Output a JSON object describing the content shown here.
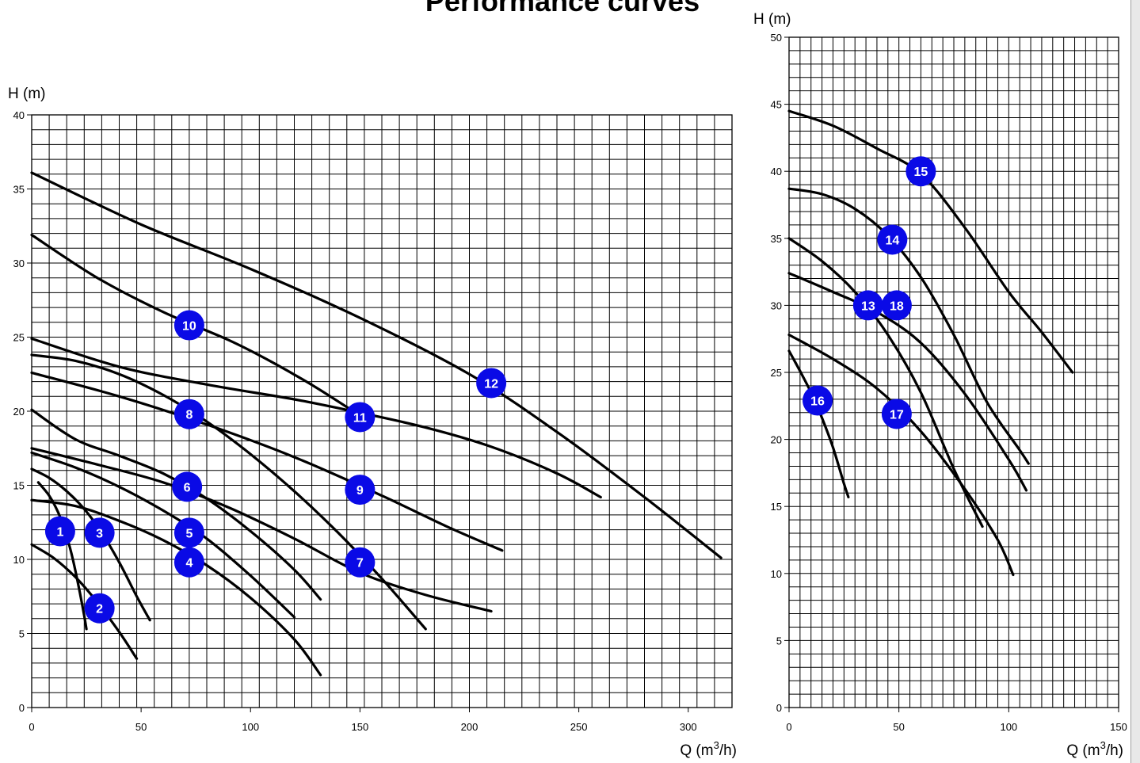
{
  "title": "Performance curves",
  "chart_data": [
    {
      "type": "line",
      "ylabel_prefix": "H (m)",
      "xlabel_prefix": "Q (m",
      "xlabel_sup": "3",
      "xlabel_suffix": "/h)",
      "xlim": [
        0,
        320
      ],
      "ylim": [
        0,
        40
      ],
      "xticks": [
        0,
        50,
        100,
        150,
        200,
        250,
        300
      ],
      "yticks": [
        0,
        5,
        10,
        15,
        20,
        25,
        30,
        35,
        40
      ],
      "grid": true,
      "series": [
        {
          "label": "1",
          "points": [
            [
              3,
              15.2
            ],
            [
              8,
              14.3
            ],
            [
              12,
              13.2
            ],
            [
              15,
              12.0
            ],
            [
              18,
              10.5
            ],
            [
              21,
              8.5
            ],
            [
              24,
              6.2
            ],
            [
              25,
              5.3
            ]
          ],
          "badge": [
            13,
            11.9
          ]
        },
        {
          "label": "2",
          "points": [
            [
              0,
              11
            ],
            [
              10,
              10.1
            ],
            [
              20,
              8.8
            ],
            [
              30,
              7.1
            ],
            [
              40,
              5.1
            ],
            [
              48,
              3.3
            ]
          ],
          "badge": [
            31,
            6.7
          ]
        },
        {
          "label": "3",
          "points": [
            [
              0,
              16.1
            ],
            [
              8,
              15.5
            ],
            [
              16,
              14.6
            ],
            [
              24,
              13.4
            ],
            [
              32,
              11.8
            ],
            [
              40,
              9.8
            ],
            [
              48,
              7.5
            ],
            [
              54,
              5.9
            ]
          ],
          "badge": [
            31,
            11.8
          ]
        },
        {
          "label": "4",
          "points": [
            [
              0,
              14
            ],
            [
              20,
              13.6
            ],
            [
              40,
              12.6
            ],
            [
              60,
              11.3
            ],
            [
              80,
              9.6
            ],
            [
              100,
              7.4
            ],
            [
              120,
              4.6
            ],
            [
              132,
              2.2
            ]
          ],
          "badge": [
            72,
            9.8
          ]
        },
        {
          "label": "5",
          "points": [
            [
              0,
              17.2
            ],
            [
              20,
              16.2
            ],
            [
              40,
              14.9
            ],
            [
              60,
              13.3
            ],
            [
              80,
              11.4
            ],
            [
              100,
              8.9
            ],
            [
              120,
              6.1
            ]
          ],
          "badge": [
            72,
            11.8
          ]
        },
        {
          "label": "6",
          "points": [
            [
              0,
              20.1
            ],
            [
              20,
              18.1
            ],
            [
              40,
              17.0
            ],
            [
              60,
              15.8
            ],
            [
              80,
              14.1
            ],
            [
              100,
              11.9
            ],
            [
              120,
              9.3
            ],
            [
              132,
              7.3
            ]
          ],
          "badge": [
            71,
            14.9
          ]
        },
        {
          "label": "7",
          "points": [
            [
              0,
              17.5
            ],
            [
              30,
              16.4
            ],
            [
              60,
              15.2
            ],
            [
              90,
              13.5
            ],
            [
              120,
              11.4
            ],
            [
              150,
              9.1
            ],
            [
              180,
              7.6
            ],
            [
              210,
              6.5
            ]
          ],
          "badge": [
            150,
            9.8
          ]
        },
        {
          "label": "8",
          "points": [
            [
              0,
              23.8
            ],
            [
              20,
              23.4
            ],
            [
              40,
              22.5
            ],
            [
              60,
              21.1
            ],
            [
              80,
              19.3
            ],
            [
              100,
              17.1
            ],
            [
              120,
              14.6
            ],
            [
              140,
              11.8
            ],
            [
              160,
              8.7
            ],
            [
              180,
              5.3
            ]
          ],
          "badge": [
            72,
            19.8
          ]
        },
        {
          "label": "9",
          "points": [
            [
              0,
              22.6
            ],
            [
              40,
              21.0
            ],
            [
              80,
              19.1
            ],
            [
              120,
              16.9
            ],
            [
              160,
              14.3
            ],
            [
              190,
              12.2
            ],
            [
              215,
              10.6
            ]
          ],
          "badge": [
            150,
            14.7
          ]
        },
        {
          "label": "10",
          "points": [
            [
              0,
              31.9
            ],
            [
              30,
              29.0
            ],
            [
              60,
              26.7
            ],
            [
              90,
              24.8
            ],
            [
              110,
              23.3
            ],
            [
              130,
              21.6
            ],
            [
              150,
              19.7
            ]
          ],
          "badge": [
            72,
            25.8
          ]
        },
        {
          "label": "11",
          "points": [
            [
              0,
              24.9
            ],
            [
              40,
              23.0
            ],
            [
              80,
              21.8
            ],
            [
              120,
              20.8
            ],
            [
              150,
              19.9
            ],
            [
              180,
              18.9
            ],
            [
              210,
              17.6
            ],
            [
              240,
              15.8
            ],
            [
              260,
              14.2
            ]
          ],
          "badge": [
            150,
            19.6
          ]
        },
        {
          "label": "12",
          "points": [
            [
              0,
              36.1
            ],
            [
              50,
              32.6
            ],
            [
              100,
              29.6
            ],
            [
              150,
              26.3
            ],
            [
              200,
              22.5
            ],
            [
              240,
              18.6
            ],
            [
              280,
              14.2
            ],
            [
              315,
              10.1
            ]
          ],
          "badge": [
            210,
            21.9
          ]
        }
      ]
    },
    {
      "type": "line",
      "ylabel_prefix": "H (m)",
      "xlabel_prefix": "Q (m",
      "xlabel_sup": "3",
      "xlabel_suffix": "/h)",
      "xlim": [
        0,
        150
      ],
      "ylim": [
        0,
        50
      ],
      "xticks": [
        0,
        50,
        100,
        150
      ],
      "yticks": [
        0,
        5,
        10,
        15,
        20,
        25,
        30,
        35,
        40,
        45,
        50
      ],
      "grid": true,
      "series": [
        {
          "label": "13",
          "points": [
            [
              0,
              35
            ],
            [
              15,
              33.3
            ],
            [
              30,
              31.0
            ],
            [
              45,
              27.8
            ],
            [
              60,
              23.5
            ],
            [
              75,
              17.8
            ],
            [
              88,
              13.5
            ]
          ],
          "badge": [
            36,
            30
          ]
        },
        {
          "label": "14",
          "points": [
            [
              0,
              38.7
            ],
            [
              15,
              38.3
            ],
            [
              30,
              37.2
            ],
            [
              45,
              35.2
            ],
            [
              60,
              32.1
            ],
            [
              75,
              27.8
            ],
            [
              90,
              22.8
            ],
            [
              105,
              19.2
            ],
            [
              109,
              18.2
            ]
          ],
          "badge": [
            47,
            34.9
          ]
        },
        {
          "label": "15",
          "points": [
            [
              0,
              44.5
            ],
            [
              20,
              43.4
            ],
            [
              40,
              41.7
            ],
            [
              60,
              39.8
            ],
            [
              80,
              35.8
            ],
            [
              100,
              31.0
            ],
            [
              115,
              28.0
            ],
            [
              129,
              25
            ]
          ],
          "badge": [
            60,
            40
          ]
        },
        {
          "label": "16",
          "points": [
            [
              0,
              26.6
            ],
            [
              5,
              25.1
            ],
            [
              10,
              23.5
            ],
            [
              15,
              21.6
            ],
            [
              20,
              19.4
            ],
            [
              25,
              16.7
            ],
            [
              27,
              15.7
            ]
          ],
          "badge": [
            13,
            22.9
          ]
        },
        {
          "label": "17",
          "points": [
            [
              0,
              27.8
            ],
            [
              20,
              26.0
            ],
            [
              40,
              23.8
            ],
            [
              60,
              20.6
            ],
            [
              80,
              16.3
            ],
            [
              95,
              12.5
            ],
            [
              102,
              9.9
            ]
          ],
          "badge": [
            49,
            21.9
          ]
        },
        {
          "label": "18",
          "points": [
            [
              0,
              32.4
            ],
            [
              20,
              31.0
            ],
            [
              40,
              29.5
            ],
            [
              60,
              27.2
            ],
            [
              80,
              23.4
            ],
            [
              100,
              18.5
            ],
            [
              108,
              16.2
            ]
          ],
          "badge": [
            49,
            30
          ]
        }
      ]
    }
  ]
}
